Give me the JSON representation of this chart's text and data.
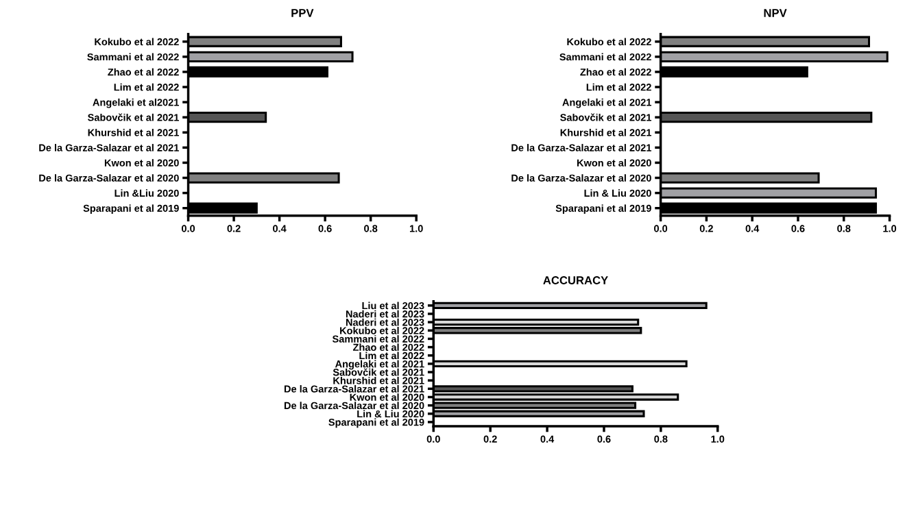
{
  "chart_data": [
    {
      "type": "bar",
      "orientation": "horizontal",
      "title": "PPV",
      "categories": [
        "Kokubo et al 2022",
        "Sammani et al 2022",
        "Zhao et al 2022",
        "Lim et al 2022",
        "Angelaki et al2021",
        "Sabovčik et al 2021",
        "Khurshid et al 2021",
        "De la Garza-Salazar et al 2021",
        "Kwon et al 2020",
        "De la Garza-Salazar et al 2020",
        "Lin &Liu 2020",
        "Sparapani et al 2019"
      ],
      "values": [
        0.67,
        0.72,
        0.61,
        null,
        null,
        0.34,
        null,
        null,
        null,
        0.66,
        null,
        0.3
      ],
      "colors": [
        "#808080",
        "#a0a0a4",
        "#000000",
        null,
        null,
        "#555555",
        null,
        null,
        null,
        "#808080",
        null,
        "#000000"
      ],
      "xlim": [
        0,
        1
      ],
      "xticks": [
        {
          "value": 0,
          "label": "0.0"
        },
        {
          "value": 0.2,
          "label": "0.2"
        },
        {
          "value": 0.4,
          "label": "0.4"
        },
        {
          "value": 0.6,
          "label": "0.6"
        },
        {
          "value": 0.8,
          "label": "0.8"
        },
        {
          "value": 1,
          "label": "1.0"
        }
      ]
    },
    {
      "type": "bar",
      "orientation": "horizontal",
      "title": "NPV",
      "categories": [
        "Kokubo et al 2022",
        "Sammani et al 2022",
        "Zhao et al 2022",
        "Lim et al 2022",
        "Angelaki et al 2021",
        "Sabovčik et al 2021",
        "Khurshid et al 2021",
        "De la Garza-Salazar et al 2021",
        "Kwon et al 2020",
        "De la Garza-Salazar et al 2020",
        "Lin & Liu 2020",
        "Sparapani et al 2019"
      ],
      "values": [
        0.91,
        0.99,
        0.64,
        null,
        null,
        0.92,
        null,
        null,
        null,
        0.69,
        0.94,
        0.94
      ],
      "colors": [
        "#808080",
        "#a0a0a4",
        "#000000",
        null,
        null,
        "#555555",
        null,
        null,
        null,
        "#808080",
        "#a0a0a4",
        "#000000"
      ],
      "xlim": [
        0,
        1
      ],
      "xticks": [
        {
          "value": 0,
          "label": "0.0"
        },
        {
          "value": 0.2,
          "label": "0.2"
        },
        {
          "value": 0.4,
          "label": "0.4"
        },
        {
          "value": 0.6,
          "label": "0.6"
        },
        {
          "value": 0.8,
          "label": "0.8"
        },
        {
          "value": 1,
          "label": "1.0"
        }
      ]
    },
    {
      "type": "bar",
      "orientation": "horizontal",
      "title": "ACCURACY",
      "categories": [
        "Liu et al 2023",
        "Naderi et al 2023",
        "Naderi et al 2023",
        "Kokubo et al 2022",
        "Sammani et al 2022",
        "Zhao et al 2022",
        "Lim et al 2022",
        "Angelaki et al 2021",
        "Sabovčik et al 2021",
        "Khurshid et al 2021",
        "De la Garza-Salazar et al 2021",
        "Kwon et al 2020",
        "De la Garza-Salazar et al 2020",
        "Lin & Liu 2020",
        "Sparapani et al 2019"
      ],
      "values": [
        0.96,
        null,
        0.72,
        0.73,
        null,
        null,
        null,
        0.89,
        null,
        null,
        0.7,
        0.86,
        0.71,
        0.74,
        null
      ],
      "colors": [
        "#a0a0a4",
        null,
        "#d9d9d9",
        "#808080",
        null,
        null,
        null,
        "#d9d9d9",
        null,
        null,
        "#555555",
        "#d9d9d9",
        "#808080",
        "#a0a0a4",
        null
      ],
      "xlim": [
        0,
        1
      ],
      "xticks": [
        {
          "value": 0,
          "label": "0.0"
        },
        {
          "value": 0.2,
          "label": "0.2"
        },
        {
          "value": 0.4,
          "label": "0.4"
        },
        {
          "value": 0.6,
          "label": "0.6"
        },
        {
          "value": 0.8,
          "label": "0.8"
        },
        {
          "value": 1,
          "label": "1.0"
        }
      ]
    }
  ]
}
